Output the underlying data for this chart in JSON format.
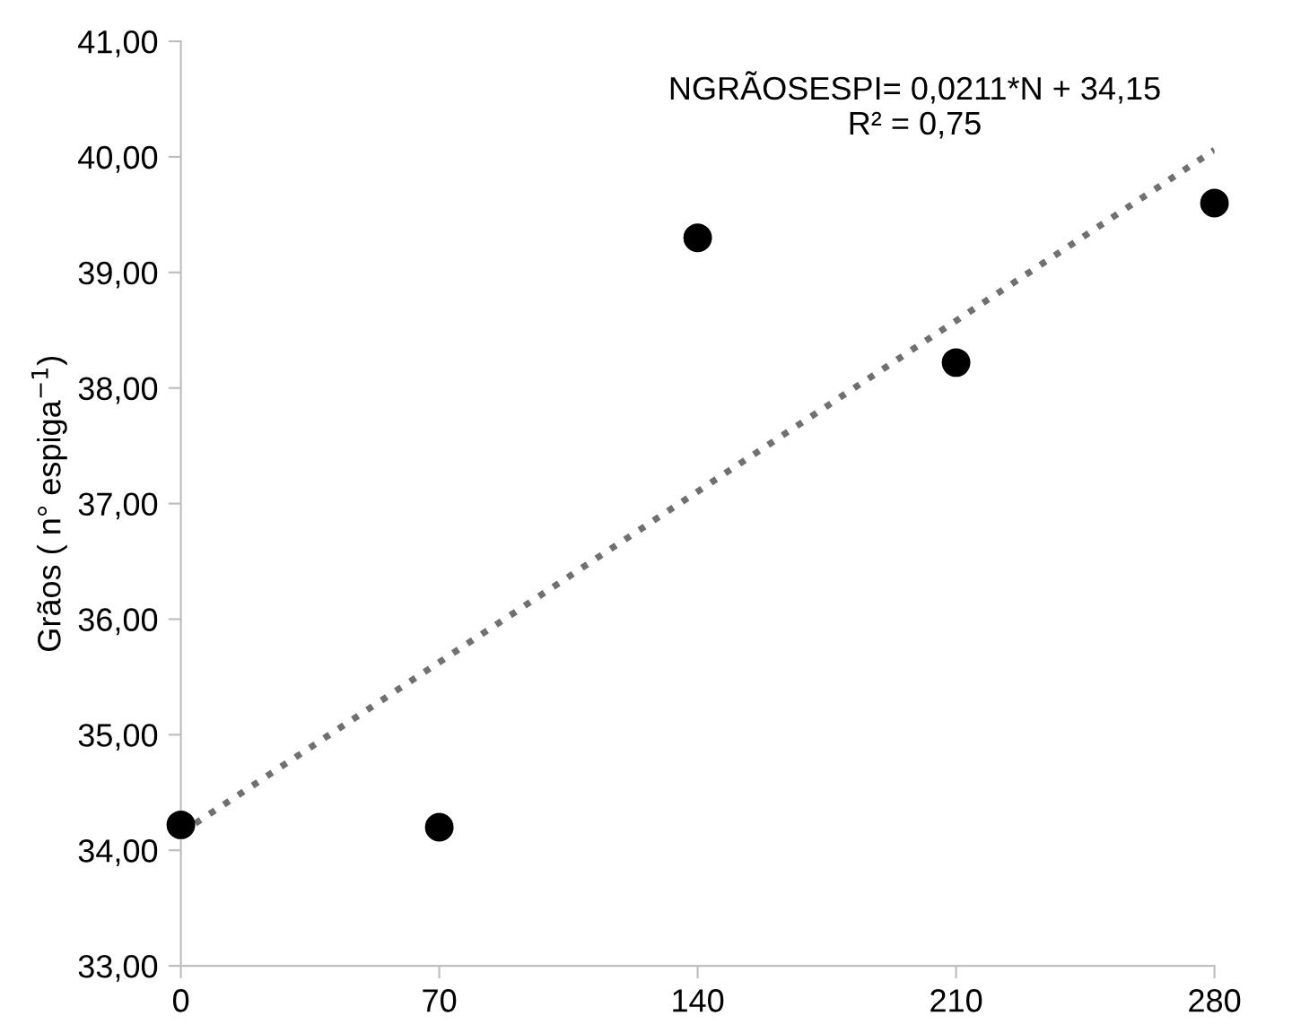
{
  "chart_data": {
    "type": "scatter",
    "ylabel": "Grãos ( n° espiga$^{−1}$)",
    "annotations": [
      "NGRÃOSESPI= 0,0211*N + 34,15\nR² = 0,75"
    ],
    "x": [
      0,
      70,
      140,
      210,
      280
    ],
    "series": [
      {
        "color": "#000000",
        "marker": "circle",
        "values": [
          34.22,
          34.2,
          39.3,
          38.22,
          39.6
        ]
      },
      {
        "type": "line",
        "color": "#707070",
        "line_style": "dotted",
        "marker": "none",
        "x": [
          0,
          280
        ],
        "values": [
          34.15,
          40.06
        ]
      }
    ],
    "xlim": [
      0,
      280
    ],
    "xticks": [
      0,
      70,
      140,
      210,
      280
    ],
    "ylim": [
      33,
      41
    ],
    "yticks": [
      {
        "value": 33,
        "label": "33,00"
      },
      {
        "value": 34,
        "label": "34,00"
      },
      {
        "value": 35,
        "label": "35,00"
      },
      {
        "value": 36,
        "label": "36,00"
      },
      {
        "value": 37,
        "label": "37,00"
      },
      {
        "value": 38,
        "label": "38,00"
      },
      {
        "value": 39,
        "label": "39,00"
      },
      {
        "value": 40,
        "label": "40,00"
      },
      {
        "value": 41,
        "label": "41,00"
      }
    ],
    "grid": false,
    "legend": false
  }
}
